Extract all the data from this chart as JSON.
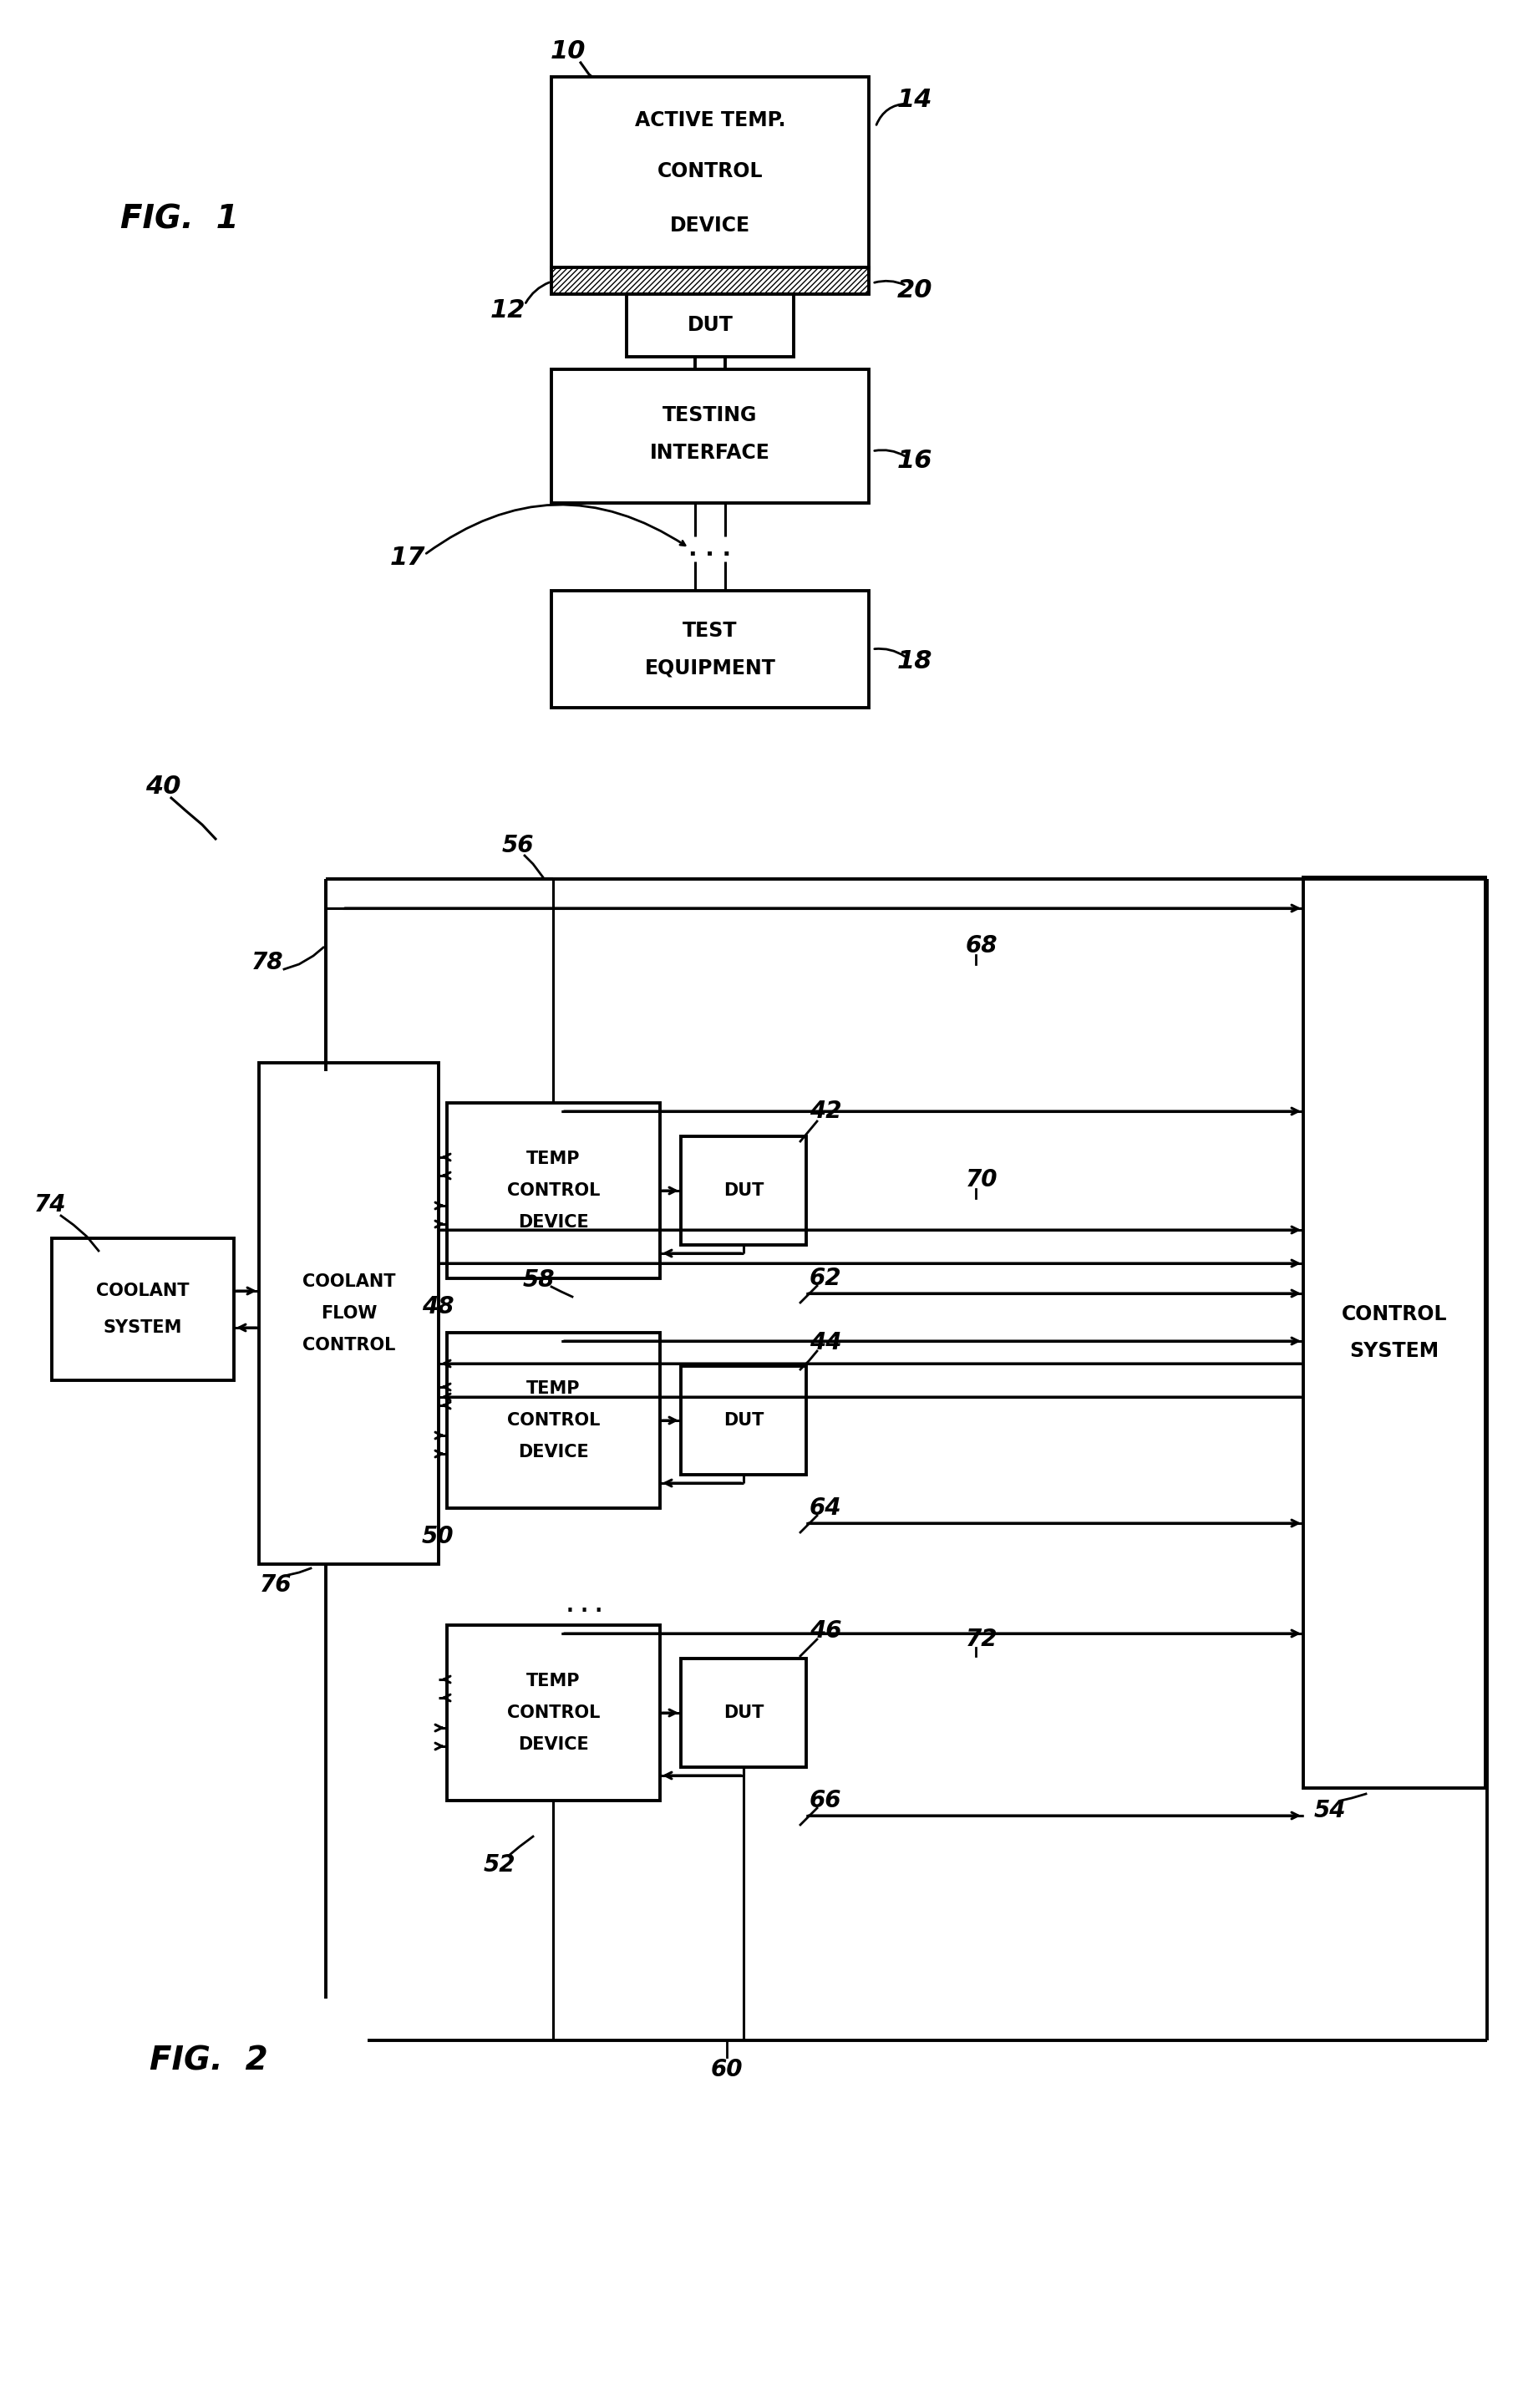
{
  "bg": "#ffffff",
  "fig1_label": "FIG.  1",
  "fig2_label": "FIG.  2",
  "r10": "10",
  "r12": "12",
  "r14": "14",
  "r16": "16",
  "r17": "17",
  "r18": "18",
  "r20": "20",
  "r40": "40",
  "r42": "42",
  "r44": "44",
  "r46": "46",
  "r48": "48",
  "r50": "50",
  "r52": "52",
  "r54": "54",
  "r56": "56",
  "r58": "58",
  "r60": "60",
  "r62": "62",
  "r64": "64",
  "r66": "66",
  "r68": "68",
  "r70": "70",
  "r72": "72",
  "r74": "74",
  "r76": "76",
  "r78": "78"
}
